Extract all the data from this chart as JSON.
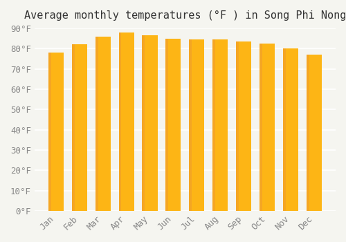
{
  "title": "Average monthly temperatures (°F ) in Song Phi Nong",
  "months": [
    "Jan",
    "Feb",
    "Mar",
    "Apr",
    "May",
    "Jun",
    "Jul",
    "Aug",
    "Sep",
    "Oct",
    "Nov",
    "Dec"
  ],
  "values": [
    78,
    82,
    86,
    88,
    86.5,
    85,
    84.5,
    84.5,
    83.5,
    82.5,
    80,
    77
  ],
  "bar_color_main": "#FDB515",
  "bar_color_left": "#F5A623",
  "ylim": [
    0,
    90
  ],
  "yticks": [
    0,
    10,
    20,
    30,
    40,
    50,
    60,
    70,
    80,
    90
  ],
  "ytick_labels": [
    "0°F",
    "10°F",
    "20°F",
    "30°F",
    "40°F",
    "50°F",
    "60°F",
    "70°F",
    "80°F",
    "90°F"
  ],
  "background_color": "#F5F5F0",
  "grid_color": "#FFFFFF",
  "title_fontsize": 11,
  "tick_fontsize": 9,
  "bar_width": 0.65
}
